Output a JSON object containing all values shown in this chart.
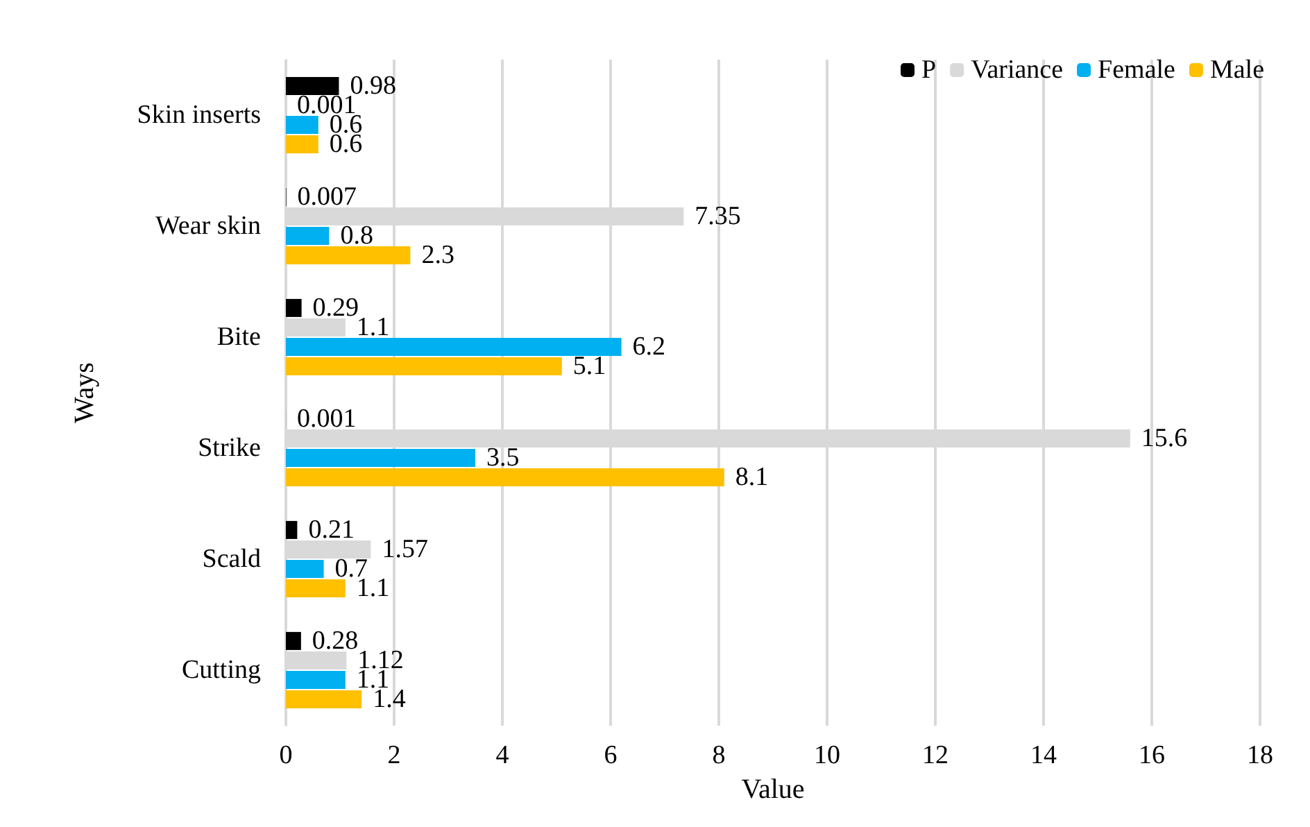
{
  "chart_data": {
    "type": "bar",
    "orientation": "horizontal",
    "xlabel": "Value",
    "ylabel": "Ways",
    "categories": [
      "Skin inserts",
      "Wear skin",
      "Bite",
      "Strike",
      "Scald",
      "Cutting"
    ],
    "series": [
      {
        "name": "P",
        "color": "#000000",
        "values": [
          0.98,
          0.007,
          0.29,
          0.001,
          0.21,
          0.28
        ]
      },
      {
        "name": "Variance",
        "color": "#d9d9d9",
        "values": [
          0.001,
          7.35,
          1.1,
          15.6,
          1.57,
          1.12
        ]
      },
      {
        "name": "Female",
        "color": "#00b0f0",
        "values": [
          0.6,
          0.8,
          6.2,
          3.5,
          0.7,
          1.1
        ]
      },
      {
        "name": "Male",
        "color": "#ffc000",
        "values": [
          0.6,
          2.3,
          5.1,
          8.1,
          1.1,
          1.4
        ]
      }
    ],
    "xlim": [
      0,
      18
    ],
    "xticks": [
      0,
      2,
      4,
      6,
      8,
      10,
      12,
      14,
      16,
      18
    ],
    "grid": "x",
    "legend": "top right",
    "data_labels": true
  }
}
